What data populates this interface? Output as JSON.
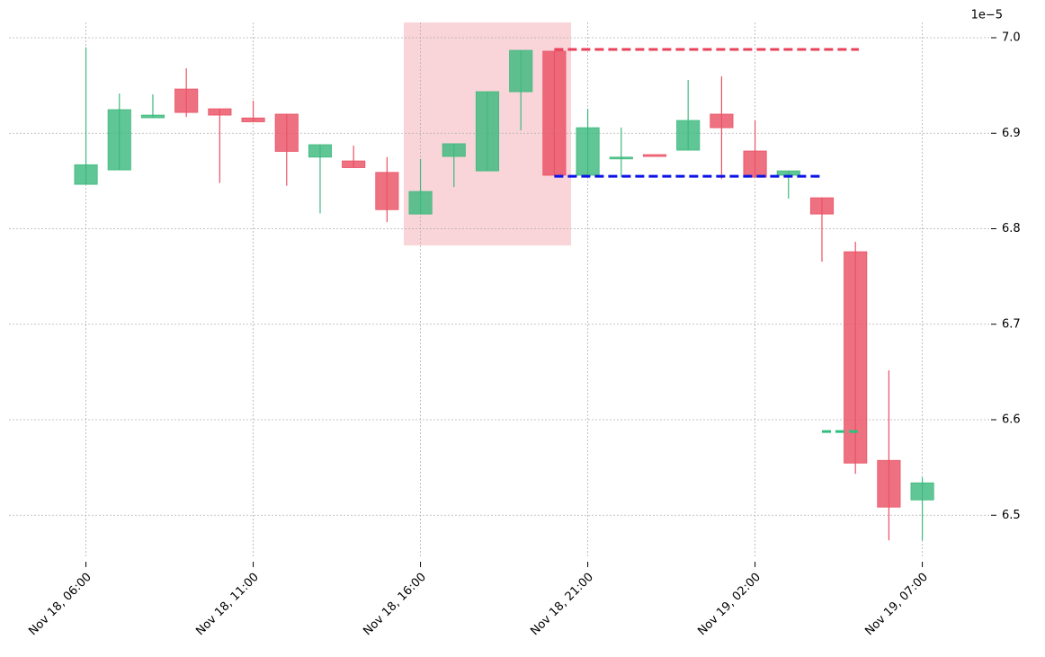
{
  "chart_data": {
    "type": "candlestick",
    "y_offset_label": "1e−5",
    "categories": [
      "Nov 18, 06:00",
      null,
      null,
      null,
      null,
      "Nov 18, 11:00",
      null,
      null,
      null,
      null,
      "Nov 18, 16:00",
      null,
      null,
      null,
      null,
      "Nov 18, 21:00",
      null,
      null,
      null,
      null,
      "Nov 19, 02:00",
      null,
      null,
      null,
      null,
      "Nov 19, 07:00"
    ],
    "open": [
      6.8465,
      6.8616,
      6.9162,
      6.9463,
      6.9256,
      6.916,
      6.92,
      6.875,
      6.871,
      6.859,
      6.8154,
      6.8757,
      6.8606,
      6.9435,
      6.9859,
      6.856,
      6.874,
      6.8776,
      6.8823,
      6.92,
      6.8814,
      6.856,
      6.8324,
      6.7759,
      6.5574,
      6.516
    ],
    "high": [
      6.99,
      6.9416,
      6.9407,
      6.968,
      6.9256,
      6.934,
      6.92,
      6.888,
      6.887,
      6.875,
      6.873,
      6.889,
      6.9435,
      6.9868,
      6.9859,
      6.9256,
      6.906,
      6.8776,
      6.9557,
      6.9595,
      6.9134,
      6.8606,
      6.8324,
      6.7863,
      6.6516,
      6.5395
    ],
    "low": [
      6.8465,
      6.8616,
      6.9162,
      6.917,
      6.848,
      6.912,
      6.845,
      6.816,
      6.864,
      6.807,
      6.8154,
      6.8437,
      6.8606,
      6.903,
      6.856,
      6.856,
      6.854,
      6.8767,
      6.8823,
      6.852,
      6.854,
      6.8315,
      6.7655,
      6.5433,
      6.4736,
      6.4736
    ],
    "close": [
      6.867,
      6.9247,
      6.919,
      6.9218,
      6.919,
      6.912,
      6.881,
      6.888,
      6.864,
      6.82,
      6.839,
      6.889,
      6.9435,
      6.9868,
      6.856,
      6.9058,
      6.875,
      6.8767,
      6.9134,
      6.9058,
      6.854,
      6.8606,
      6.8154,
      6.5546,
      6.5085,
      6.5339
    ],
    "up_color": "#3dba7e",
    "down_color": "#ea5265",
    "xlim": [
      -2.3,
      27
    ],
    "xticks": [
      0,
      5,
      10,
      15,
      20,
      25
    ],
    "ylim": [
      6.456,
      7.016
    ],
    "yticks": [
      {
        "value": 6.5,
        "label": "6.5"
      },
      {
        "value": 6.6,
        "label": "6.6"
      },
      {
        "value": 6.7,
        "label": "6.7"
      },
      {
        "value": 6.8,
        "label": "6.8"
      },
      {
        "value": 6.9,
        "label": "6.9"
      },
      {
        "value": 7.0,
        "label": "7.0"
      }
    ],
    "grid": true,
    "highlight": {
      "x": [
        9.5,
        14.5
      ],
      "y": [
        6.7825,
        7.016
      ],
      "color": "#f7c5cb"
    },
    "hlines": [
      {
        "y": 6.9878,
        "x": [
          14,
          23.1
        ],
        "color": "#e8415a"
      },
      {
        "y": 6.855,
        "x": [
          14,
          22
        ],
        "color": "#0a12e6"
      },
      {
        "y": 6.5876,
        "x": [
          22,
          23.1
        ],
        "color": "#2fbf7f"
      }
    ]
  }
}
